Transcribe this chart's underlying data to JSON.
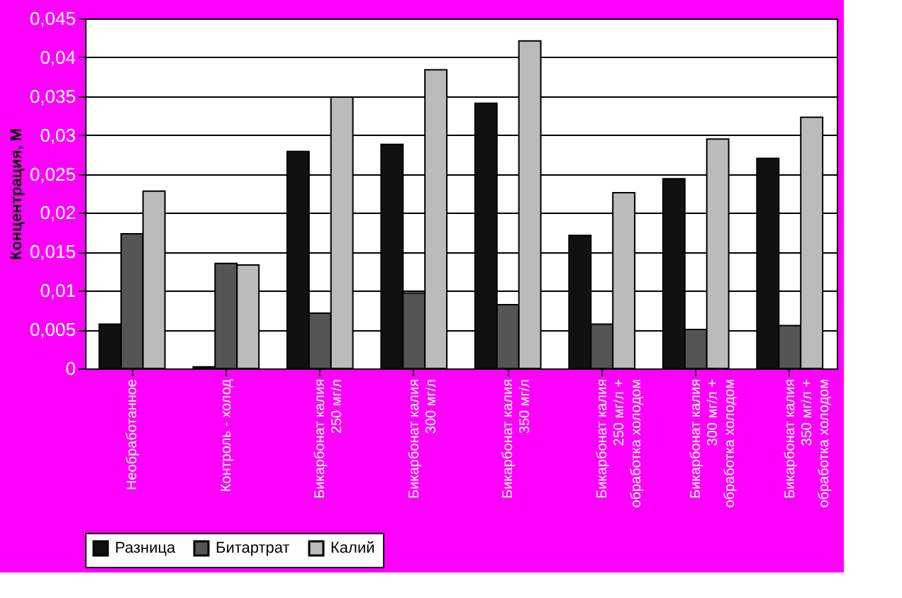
{
  "chart_data": {
    "type": "bar",
    "ylabel": "Концентрация, М",
    "categories": [
      "Необработанное",
      "Контроль - холод",
      "Бикарбонат калия 250 мг/л",
      "Бикарбонат калия 300 мг/л",
      "Бикарбонат калия 350 мг/л",
      "Бикарбонат калия 250 мг/л + обработка холодом",
      "Бикарбонат калия 300 мг/л + обработка холодом",
      "Бикарбонат калия 350 мг/л + обработка холодом"
    ],
    "series": [
      {
        "name": "Разница",
        "color": "#111111",
        "values": [
          0.0057,
          0.0002,
          0.0279,
          0.0288,
          0.0341,
          0.0171,
          0.0244,
          0.027
        ]
      },
      {
        "name": "Битартрат",
        "color": "#555555",
        "values": [
          0.0173,
          0.0135,
          0.0071,
          0.0097,
          0.0082,
          0.0057,
          0.005,
          0.0055
        ]
      },
      {
        "name": "Калий",
        "color": "#bbbbbb",
        "values": [
          0.0228,
          0.0133,
          0.0349,
          0.0384,
          0.0421,
          0.0226,
          0.0295,
          0.0323
        ]
      }
    ],
    "ylim": [
      0,
      0.045
    ],
    "yticks": [
      0,
      {
        "value": 0.005,
        "label": "0,005"
      },
      {
        "value": 0.01,
        "label": "0,01"
      },
      {
        "value": 0.015,
        "label": "0,015"
      },
      {
        "value": 0.02,
        "label": "0,02"
      },
      {
        "value": 0.025,
        "label": "0,025"
      },
      {
        "value": 0.03,
        "label": "0,03"
      },
      {
        "value": 0.035,
        "label": "0,035"
      },
      {
        "value": 0.04,
        "label": "0,04"
      },
      {
        "value": 0.045,
        "label": "0,045"
      }
    ],
    "grid": "y",
    "legend": "bottom"
  }
}
